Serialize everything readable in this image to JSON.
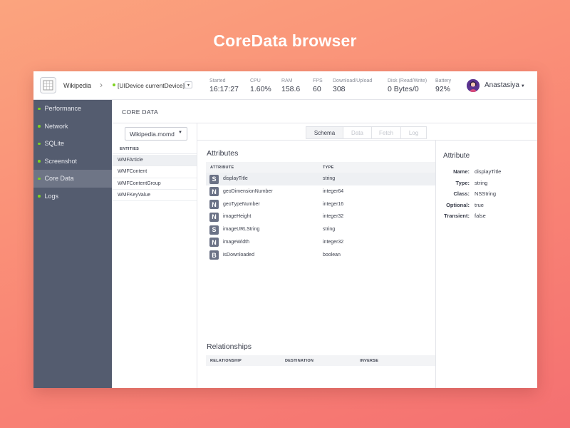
{
  "hero": {
    "title": "CoreData browser"
  },
  "topbar": {
    "app_name": "Wikipedia",
    "device": "[UIDevice currentDevice]",
    "stats": [
      {
        "label": "Started",
        "value": "16:17:27"
      },
      {
        "label": "CPU",
        "value": "1.60%"
      },
      {
        "label": "RAM",
        "value": "158.6"
      },
      {
        "label": "FPS",
        "value": "60"
      },
      {
        "label": "Download/Upload",
        "value": "308"
      },
      {
        "label": "Disk (Read/Write)",
        "value": "0 Bytes/0"
      },
      {
        "label": "Battery",
        "value": "92%"
      }
    ],
    "user_name": "Anastasiya"
  },
  "sidebar": {
    "items": [
      {
        "label": "Performance"
      },
      {
        "label": "Network"
      },
      {
        "label": "SQLite"
      },
      {
        "label": "Screenshot"
      },
      {
        "label": "Core Data"
      },
      {
        "label": "Logs"
      }
    ],
    "active_index": 4
  },
  "content": {
    "title": "CORE DATA"
  },
  "entities": {
    "model": "Wikipedia.momd",
    "header": "ENTITIES",
    "items": [
      "WMFArticle",
      "WMFContent",
      "WMFContentGroup",
      "WMFKeyValue"
    ],
    "selected_index": 0
  },
  "tabs": [
    {
      "label": "Schema",
      "active": true
    },
    {
      "label": "Data",
      "active": false
    },
    {
      "label": "Fetch",
      "active": false
    },
    {
      "label": "Log",
      "active": false
    }
  ],
  "attributes": {
    "title": "Attributes",
    "columns": [
      "ATTRIBUTE",
      "TYPE"
    ],
    "rows": [
      {
        "badge": "S",
        "name": "displayTitle",
        "type": "string"
      },
      {
        "badge": "N",
        "name": "geoDimensionNumber",
        "type": "integer64"
      },
      {
        "badge": "N",
        "name": "geoTypeNumber",
        "type": "integer16"
      },
      {
        "badge": "N",
        "name": "imageHeight",
        "type": "integer32"
      },
      {
        "badge": "S",
        "name": "imageURLString",
        "type": "string"
      },
      {
        "badge": "N",
        "name": "imageWidth",
        "type": "integer32"
      },
      {
        "badge": "B",
        "name": "isDownloaded",
        "type": "boolean"
      },
      {
        "badge": "",
        "name": "",
        "type": ""
      }
    ],
    "selected_index": 0
  },
  "relationships": {
    "title": "Relationships",
    "columns": [
      "RELATIONSHIP",
      "DESTINATION",
      "INVERSE"
    ]
  },
  "detail": {
    "title": "Attribute",
    "fields": [
      {
        "key": "Name:",
        "value": "displayTitle"
      },
      {
        "key": "Type:",
        "value": "string"
      },
      {
        "key": "Class:",
        "value": "NSString"
      },
      {
        "key": "Optional:",
        "value": "true"
      },
      {
        "key": "Transient:",
        "value": "false"
      }
    ]
  },
  "colors": {
    "accent_green": "#7ed321",
    "sidebar_bg": "#545c6f",
    "badge_bg": "#6b7286"
  }
}
